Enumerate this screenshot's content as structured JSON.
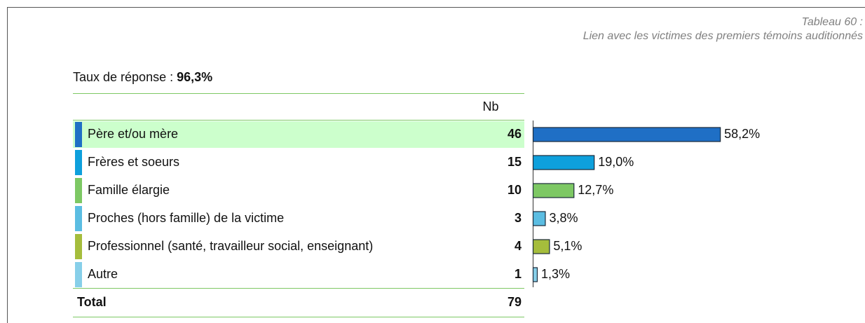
{
  "header": {
    "number": "Tableau 60 :",
    "title": "Lien avec les victimes des premiers témoins auditionnés"
  },
  "response_rate": {
    "label": "Taux de réponse :",
    "value": "96,3%"
  },
  "table": {
    "column": "Nb",
    "rows": [
      {
        "label": "Père et/ou mère",
        "nb": 46,
        "pct": 58.2,
        "pct_label": "58,2%",
        "color": "#1f6fc5"
      },
      {
        "label": "Frères et soeurs",
        "nb": 15,
        "pct": 19.0,
        "pct_label": "19,0%",
        "color": "#0ea0dc"
      },
      {
        "label": "Famille élargie",
        "nb": 10,
        "pct": 12.7,
        "pct_label": "12,7%",
        "color": "#7dc864"
      },
      {
        "label": "Proches (hors famille) de la victime",
        "nb": 3,
        "pct": 3.8,
        "pct_label": "3,8%",
        "color": "#5bbde2"
      },
      {
        "label": "Professionnel (santé, travailleur social, enseignant)",
        "nb": 4,
        "pct": 5.1,
        "pct_label": "5,1%",
        "color": "#a5bd3c"
      },
      {
        "label": "Autre",
        "nb": 1,
        "pct": 1.3,
        "pct_label": "1,3%",
        "color": "#87cfe9"
      }
    ],
    "total": {
      "label": "Total",
      "nb": 79
    }
  }
}
